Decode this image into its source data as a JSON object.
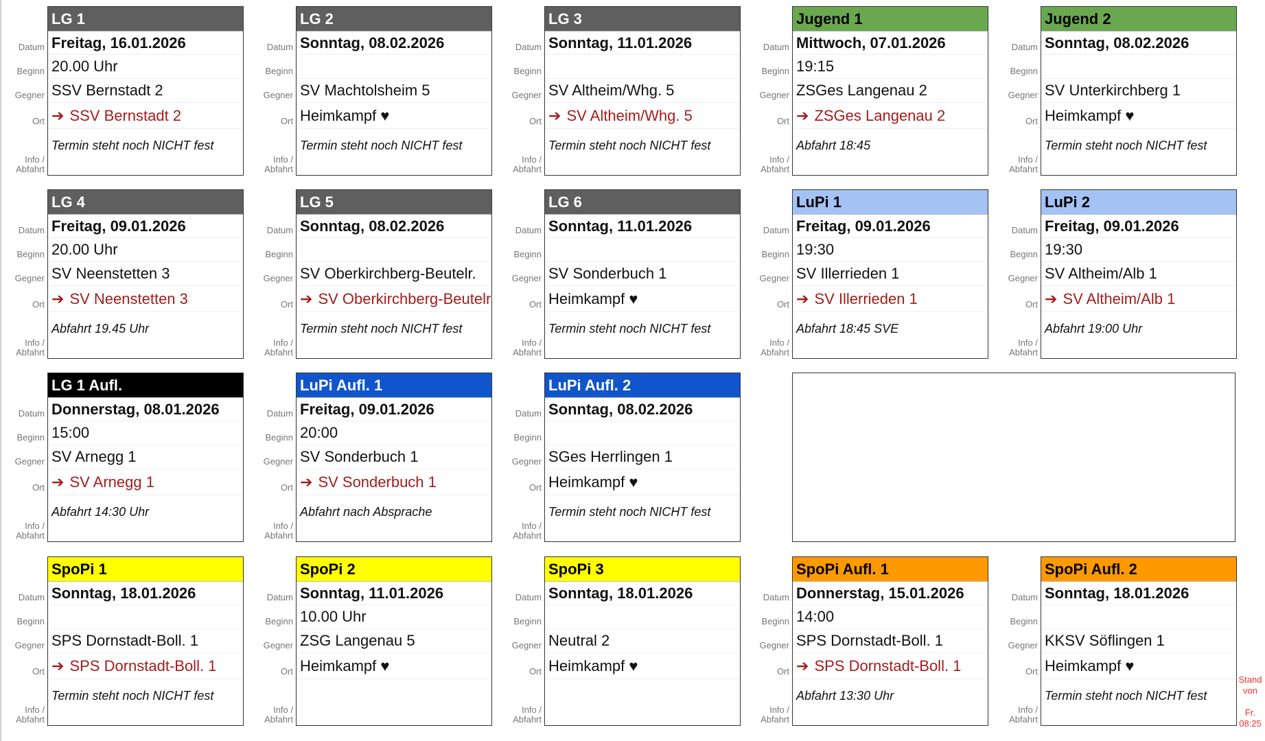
{
  "labels": {
    "datum": "Datum",
    "beginn": "Beginn",
    "gegner": "Gegner",
    "ort": "Ort",
    "info": "Info /",
    "info2": "Abfahrt"
  },
  "colors": {
    "grey": "#5f5f5f",
    "green": "#6aa84f",
    "lightblue": "#a4c2f4",
    "black": "#000000",
    "blue": "#1155cc",
    "yellow": "#ffff00",
    "orange": "#ff9900",
    "away": "#a61c1c",
    "stand": "#ff2a2a"
  },
  "cards": [
    {
      "title": "LG 1",
      "bg": "#5f5f5f",
      "fg": "#ffffff",
      "datum": "Freitag, 16.01.2026",
      "beginn": "20.00 Uhr",
      "gegner": "SSV Bernstadt 2",
      "ort": "SSV Bernstadt 2",
      "away": true,
      "info": "Termin steht noch NICHT fest"
    },
    {
      "title": "LG 2",
      "bg": "#5f5f5f",
      "fg": "#ffffff",
      "datum": "Sonntag, 08.02.2026",
      "beginn": "",
      "gegner": "SV Machtolsheim 5",
      "ort": "Heimkampf ♥",
      "away": false,
      "info": "Termin steht noch NICHT fest"
    },
    {
      "title": "LG 3",
      "bg": "#5f5f5f",
      "fg": "#ffffff",
      "datum": "Sonntag, 11.01.2026",
      "beginn": "",
      "gegner": "SV Altheim/Whg. 5",
      "ort": "SV Altheim/Whg. 5",
      "away": true,
      "info": "Termin steht noch NICHT fest"
    },
    {
      "title": "Jugend 1",
      "bg": "#6aa84f",
      "fg": "#000000",
      "datum": "Mittwoch, 07.01.2026",
      "beginn": "19:15",
      "gegner": "ZSGes Langenau 2",
      "ort": "ZSGes Langenau 2",
      "away": true,
      "info": "Abfahrt 18:45"
    },
    {
      "title": "Jugend 2",
      "bg": "#6aa84f",
      "fg": "#000000",
      "datum": "Sonntag, 08.02.2026",
      "beginn": "",
      "gegner": "SV Unterkirchberg 1",
      "ort": "Heimkampf ♥",
      "away": false,
      "info": "Termin steht noch NICHT fest"
    },
    {
      "title": "LG 4",
      "bg": "#5f5f5f",
      "fg": "#ffffff",
      "datum": "Freitag, 09.01.2026",
      "beginn": "20.00 Uhr",
      "gegner": "SV Neenstetten 3",
      "ort": "SV Neenstetten 3",
      "away": true,
      "info": "Abfahrt 19.45 Uhr"
    },
    {
      "title": "LG 5",
      "bg": "#5f5f5f",
      "fg": "#ffffff",
      "datum": "Sonntag, 08.02.2026",
      "beginn": "",
      "gegner": "SV Oberkirchberg-Beutelr.",
      "ort": "SV Oberkirchberg-Beutelr.",
      "away": true,
      "info": "Termin steht noch NICHT fest"
    },
    {
      "title": "LG 6",
      "bg": "#5f5f5f",
      "fg": "#ffffff",
      "datum": "Sonntag, 11.01.2026",
      "beginn": "",
      "gegner": "SV Sonderbuch 1",
      "ort": "Heimkampf ♥",
      "away": false,
      "info": "Termin steht noch NICHT fest"
    },
    {
      "title": "LuPi 1",
      "bg": "#a4c2f4",
      "fg": "#000000",
      "datum": "Freitag, 09.01.2026",
      "beginn": "19:30",
      "gegner": "SV Illerrieden 1",
      "ort": "SV Illerrieden 1",
      "away": true,
      "info": "Abfahrt 18:45 SVE"
    },
    {
      "title": "LuPi 2",
      "bg": "#a4c2f4",
      "fg": "#000000",
      "datum": "Freitag, 09.01.2026",
      "beginn": "19:30",
      "gegner": "SV Altheim/Alb 1",
      "ort": "SV Altheim/Alb 1",
      "away": true,
      "info": "Abfahrt 19:00 Uhr"
    },
    {
      "title": "LG 1 Aufl.",
      "bg": "#000000",
      "fg": "#ffffff",
      "datum": "Donnerstag, 08.01.2026",
      "beginn": "15:00",
      "gegner": "SV Arnegg 1",
      "ort": "SV Arnegg 1",
      "away": true,
      "info": "Abfahrt 14:30 Uhr"
    },
    {
      "title": "LuPi Aufl. 1",
      "bg": "#1155cc",
      "fg": "#ffffff",
      "datum": "Freitag, 09.01.2026",
      "beginn": "20:00",
      "gegner": "SV Sonderbuch 1",
      "ort": "SV Sonderbuch 1",
      "away": true,
      "info": "Abfahrt nach Absprache"
    },
    {
      "title": "LuPi Aufl. 2",
      "bg": "#1155cc",
      "fg": "#ffffff",
      "datum": "Sonntag, 08.02.2026",
      "beginn": "",
      "gegner": "SGes Herrlingen 1",
      "ort": "Heimkampf ♥",
      "away": false,
      "info": "Termin steht noch NICHT fest"
    },
    null,
    null,
    {
      "title": "SpoPi 1",
      "bg": "#ffff00",
      "fg": "#000000",
      "datum": "Sonntag, 18.01.2026",
      "beginn": "",
      "gegner": "SPS Dornstadt-Boll. 1",
      "ort": "SPS Dornstadt-Boll. 1",
      "away": true,
      "info": "Termin steht noch NICHT fest"
    },
    {
      "title": "SpoPi 2",
      "bg": "#ffff00",
      "fg": "#000000",
      "datum": "Sonntag, 11.01.2026",
      "beginn": "10.00 Uhr",
      "gegner": "ZSG Langenau 5",
      "ort": "Heimkampf ♥",
      "away": false,
      "info": ""
    },
    {
      "title": "SpoPi 3",
      "bg": "#ffff00",
      "fg": "#000000",
      "datum": "Sonntag, 18.01.2026",
      "beginn": "",
      "gegner": "Neutral 2",
      "ort": "Heimkampf ♥",
      "away": false,
      "info": ""
    },
    {
      "title": "SpoPi Aufl. 1",
      "bg": "#ff9900",
      "fg": "#000000",
      "datum": "Donnerstag, 15.01.2026",
      "beginn": "14:00",
      "gegner": "SPS Dornstadt-Boll. 1",
      "ort": "SPS Dornstadt-Boll. 1",
      "away": true,
      "info": "Abfahrt 13:30 Uhr"
    },
    {
      "title": "SpoPi Aufl. 2",
      "bg": "#ff9900",
      "fg": "#000000",
      "datum": "Sonntag, 18.01.2026",
      "beginn": "",
      "gegner": "KKSV Söflingen 1",
      "ort": "Heimkampf ♥",
      "away": false,
      "info": "Termin steht noch NICHT fest"
    }
  ],
  "stand": {
    "line1": "Stand",
    "line2": "von",
    "line3": "Fr.",
    "line4": "08:25"
  }
}
